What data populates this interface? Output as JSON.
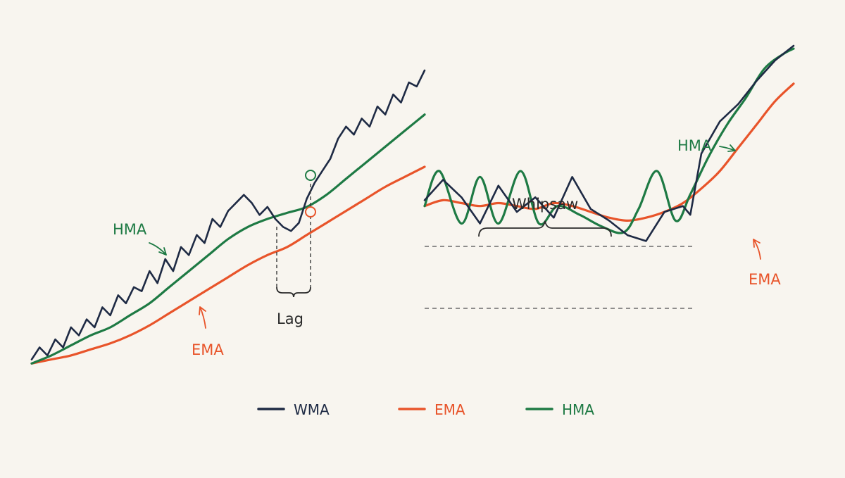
{
  "colors": {
    "background": "#f8f5ef",
    "wma": "#1e2a44",
    "ema": "#e8542a",
    "hma": "#1e7a44",
    "guide": "#6b6b6b"
  },
  "chart_data": [
    {
      "type": "line",
      "title": "",
      "xlabel": "",
      "ylabel": "",
      "grid": false,
      "series": [
        {
          "name": "WMA",
          "x": [
            0,
            2,
            4,
            6,
            8,
            10,
            12,
            14,
            16,
            18,
            20,
            22,
            24,
            26,
            28,
            30,
            32,
            34,
            36,
            38,
            40,
            42,
            44,
            46,
            48,
            50,
            52,
            54,
            56,
            58,
            60,
            62,
            64,
            66,
            68,
            70,
            72,
            74,
            76,
            78,
            80,
            82,
            84,
            86,
            88,
            90,
            92,
            94,
            96,
            98,
            100
          ],
          "y": [
            2,
            5,
            3,
            7,
            5,
            10,
            8,
            12,
            10,
            15,
            13,
            18,
            16,
            20,
            19,
            24,
            21,
            27,
            24,
            30,
            28,
            33,
            31,
            37,
            35,
            39,
            41,
            43,
            41,
            38,
            40,
            37,
            35,
            34,
            36,
            42,
            46,
            49,
            52,
            57,
            60,
            58,
            62,
            60,
            65,
            63,
            68,
            66,
            71,
            70,
            74
          ]
        },
        {
          "name": "EMA",
          "x": [
            0,
            5,
            10,
            15,
            20,
            25,
            30,
            35,
            40,
            45,
            50,
            55,
            60,
            65,
            70,
            75,
            80,
            85,
            90,
            95,
            100
          ],
          "y": [
            1,
            2,
            3,
            4.5,
            6,
            8,
            10.5,
            13.5,
            16.5,
            19.5,
            22.5,
            25.5,
            28,
            30,
            33,
            36,
            39,
            42,
            45,
            47.5,
            50
          ]
        },
        {
          "name": "HMA",
          "x": [
            0,
            5,
            10,
            15,
            20,
            25,
            30,
            35,
            40,
            45,
            50,
            55,
            60,
            65,
            70,
            75,
            80,
            85,
            90,
            95,
            100
          ],
          "y": [
            1,
            3,
            5.5,
            8,
            10,
            13,
            16,
            20,
            24,
            28,
            32,
            35,
            37,
            38.5,
            40,
            43,
            47,
            51,
            55,
            59,
            63
          ]
        }
      ],
      "annotations": {
        "lag_label": "Lag",
        "hma_label": "HMA",
        "ema_label": "EMA"
      }
    },
    {
      "type": "line",
      "title": "",
      "xlabel": "",
      "ylabel": "",
      "grid": false,
      "series": [
        {
          "name": "WMA",
          "x": [
            0,
            5,
            10,
            15,
            20,
            25,
            30,
            35,
            40,
            45,
            50,
            55,
            60,
            65,
            70,
            72,
            75,
            80,
            85,
            90,
            95,
            100
          ],
          "y": [
            40,
            47,
            41,
            32,
            45,
            36,
            41,
            34,
            48,
            37,
            33,
            28,
            26,
            36,
            38,
            35,
            56,
            67,
            73,
            81,
            88,
            93
          ]
        },
        {
          "name": "EMA",
          "x": [
            0,
            5,
            10,
            15,
            20,
            25,
            30,
            35,
            40,
            45,
            50,
            55,
            60,
            65,
            70,
            75,
            80,
            85,
            90,
            95,
            100
          ],
          "y": [
            38,
            40,
            39,
            38,
            39,
            38,
            37,
            39,
            38,
            36,
            34,
            33,
            34,
            36,
            39,
            44,
            50,
            58,
            66,
            74,
            80
          ]
        },
        {
          "name": "HMA",
          "x": [
            0,
            4,
            10,
            15,
            20,
            26,
            31,
            36,
            42,
            48,
            54,
            58,
            63,
            68,
            72,
            77,
            82,
            87,
            92,
            97,
            100
          ],
          "y": [
            38,
            50,
            32,
            48,
            32,
            50,
            32,
            38,
            35,
            31,
            29,
            37,
            50,
            33,
            42,
            55,
            66,
            75,
            85,
            90,
            92
          ]
        }
      ],
      "annotations": {
        "whipsaw_label": "Whipsaw",
        "hma_label": "HMA",
        "ema_label": "EMA"
      }
    }
  ],
  "legend": [
    {
      "name": "WMA",
      "color": "#1e2a44"
    },
    {
      "name": "EMA",
      "color": "#e8542a"
    },
    {
      "name": "HMA",
      "color": "#1e7a44"
    }
  ]
}
